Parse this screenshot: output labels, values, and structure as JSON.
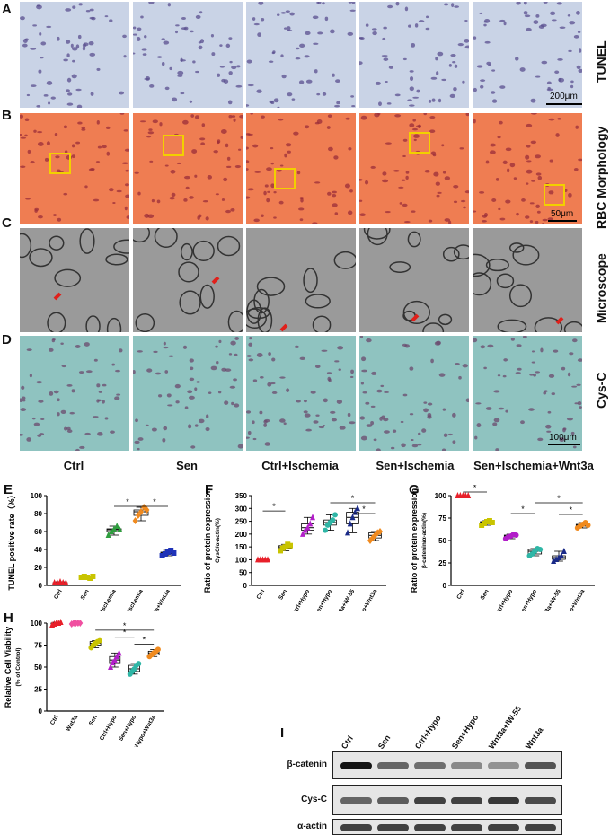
{
  "panels": {
    "A": "A",
    "B": "B",
    "C": "C",
    "D": "D",
    "E": "E",
    "F": "F",
    "G": "G",
    "H": "H",
    "I": "I"
  },
  "row_labels": [
    "TUNEL",
    "RBC Morphology",
    "Microscope",
    "Cys-C"
  ],
  "column_labels": [
    "Ctrl",
    "Sen",
    "Ctrl+Ischemia",
    "Sen+Ischemia",
    "Sen+Ischemia+Wnt3a"
  ],
  "scale_bars": {
    "A": "200μm",
    "B": "50μm",
    "D": "100μm"
  },
  "colors": {
    "tunel_bg": "#c9d3e6",
    "rbc_bg": "#ef7d52",
    "em_bg": "#9a9a9a",
    "cysc_bg": "#8fc3c0",
    "box": "#f2d000",
    "arrow": "#e0201b",
    "red": "#e8202a",
    "yellow": "#c9c400",
    "green": "#2e9e3e",
    "orange": "#f08a1e",
    "blue": "#1f33b8",
    "purple": "#b21ec9",
    "teal": "#2fb6a6",
    "navy": "#1a2a88",
    "pink": "#f04fa0"
  },
  "chart_data": [
    {
      "panel": "E",
      "type": "box",
      "ylabel": "TUNEL positive rate（%）",
      "ylim": [
        0,
        100
      ],
      "yticks": [
        0,
        20,
        40,
        60,
        80,
        100
      ],
      "categories": [
        "Ctrl",
        "Sen",
        "Ctrl+Ischemia",
        "Sen+Ischemia",
        "Sen+Ischemia+Wnt3a"
      ],
      "points": [
        [
          3,
          3,
          4,
          3,
          3
        ],
        [
          9,
          10,
          9,
          8,
          10
        ],
        [
          56,
          60,
          63,
          66,
          62
        ],
        [
          72,
          78,
          82,
          87,
          84
        ],
        [
          33,
          35,
          37,
          39,
          36
        ]
      ],
      "colors": [
        "#e8202a",
        "#c9c400",
        "#2e9e3e",
        "#f08a1e",
        "#1f33b8"
      ],
      "markers": [
        "triangle",
        "square",
        "triangle",
        "diamond",
        "square"
      ],
      "sig": [
        {
          "from": 2,
          "to": 3,
          "y": 88,
          "label": "*"
        },
        {
          "from": 3,
          "to": 4,
          "y": 88,
          "label": "*"
        }
      ]
    },
    {
      "panel": "F",
      "type": "box",
      "ylabel": "Ratio of protein expression",
      "ylabel2": "CysC/α-actin(%)",
      "ylim": [
        0,
        350
      ],
      "yticks": [
        0,
        50,
        100,
        150,
        200,
        250,
        300,
        350
      ],
      "categories": [
        "Ctrl",
        "Sen",
        "Ctrl+Hypo",
        "Sen+Hypo",
        "Sen+Hypo+Wnt3a+IW-55",
        "Sen+Hypo+Wnt3a"
      ],
      "points": [
        [
          100,
          100,
          100,
          100,
          100
        ],
        [
          135,
          145,
          150,
          160,
          155
        ],
        [
          200,
          215,
          225,
          240,
          265
        ],
        [
          215,
          235,
          245,
          255,
          275
        ],
        [
          205,
          240,
          265,
          285,
          300
        ],
        [
          175,
          185,
          195,
          205,
          210
        ]
      ],
      "colors": [
        "#e8202a",
        "#c9c400",
        "#b21ec9",
        "#2fb6a6",
        "#1a2a88",
        "#f08a1e"
      ],
      "markers": [
        "triangle",
        "square",
        "triangle",
        "circle",
        "triangle",
        "diamond"
      ],
      "sig": [
        {
          "from": 0,
          "to": 1,
          "y": 290,
          "label": "*"
        },
        {
          "from": 3,
          "to": 5,
          "y": 322,
          "label": "*"
        },
        {
          "from": 4,
          "to": 5,
          "y": 280,
          "label": "*"
        }
      ]
    },
    {
      "panel": "G",
      "type": "box",
      "ylabel": "Ratio of protein expression",
      "ylabel2": "β-catenin/α-actin(%)",
      "ylim": [
        0,
        100
      ],
      "yticks": [
        0,
        25,
        50,
        75,
        100
      ],
      "categories": [
        "Ctrl",
        "Sen",
        "Ctrl+Hypo",
        "Sen+Hypo",
        "Sen+Hypo+Wnt3a+IW-55",
        "Sen+Hypo+Wnt3a"
      ],
      "points": [
        [
          100,
          100,
          100,
          100,
          100
        ],
        [
          67,
          69,
          71,
          72,
          70
        ],
        [
          52,
          54,
          55,
          57,
          56
        ],
        [
          33,
          35,
          38,
          41,
          40
        ],
        [
          27,
          29,
          31,
          33,
          38
        ],
        [
          64,
          66,
          68,
          70,
          67
        ]
      ],
      "colors": [
        "#e8202a",
        "#c9c400",
        "#b21ec9",
        "#2fb6a6",
        "#1a2a88",
        "#f08a1e"
      ],
      "markers": [
        "triangle",
        "square",
        "circle",
        "circle",
        "triangle",
        "circle"
      ],
      "sig": [
        {
          "from": 0,
          "to": 1,
          "y": 104,
          "label": "*"
        },
        {
          "from": 2,
          "to": 3,
          "y": 80,
          "label": "*"
        },
        {
          "from": 3,
          "to": 5,
          "y": 92,
          "label": "*"
        },
        {
          "from": 4,
          "to": 5,
          "y": 79,
          "label": "*"
        }
      ]
    },
    {
      "panel": "H",
      "type": "box",
      "ylabel": "Relative Cell Viability",
      "ylabel2": "(% of Control)",
      "ylim": [
        0,
        100
      ],
      "yticks": [
        0,
        25,
        50,
        75,
        100
      ],
      "categories": [
        "Ctrl",
        "Wnt3a",
        "Sen",
        "Ctrl+Hypo",
        "Sen+Hypo",
        "Sen+Hypo+Wnt3a"
      ],
      "points": [
        [
          98,
          99,
          100,
          100,
          101
        ],
        [
          99,
          100,
          100,
          100,
          100
        ],
        [
          72,
          75,
          77,
          79,
          80
        ],
        [
          50,
          55,
          58,
          62,
          66
        ],
        [
          42,
          45,
          48,
          52,
          54
        ],
        [
          62,
          64,
          66,
          68,
          70
        ]
      ],
      "colors": [
        "#e8202a",
        "#f04fa0",
        "#c9c400",
        "#b21ec9",
        "#2fb6a6",
        "#f08a1e"
      ],
      "markers": [
        "triangle",
        "diamond",
        "circle",
        "triangle",
        "circle",
        "circle"
      ],
      "sig": [
        {
          "from": 2,
          "to": 5,
          "y": 92,
          "label": "*"
        },
        {
          "from": 3,
          "to": 4,
          "y": 84,
          "label": "*"
        },
        {
          "from": 4,
          "to": 5,
          "y": 76,
          "label": "*"
        }
      ]
    }
  ],
  "blot": {
    "lanes": [
      "Ctrl",
      "Sen",
      "Ctrl+Hypo",
      "Sen+Hypo",
      "Wnt3a+IW-55",
      "Wnt3a"
    ],
    "rows": [
      {
        "label": "β-catenin",
        "intensity": [
          1.0,
          0.55,
          0.5,
          0.35,
          0.3,
          0.65
        ]
      },
      {
        "label": "Cys-C",
        "intensity": [
          0.55,
          0.6,
          0.75,
          0.75,
          0.8,
          0.7
        ]
      },
      {
        "label": "α-actin",
        "intensity": [
          0.75,
          0.75,
          0.75,
          0.75,
          0.75,
          0.75
        ]
      }
    ]
  }
}
